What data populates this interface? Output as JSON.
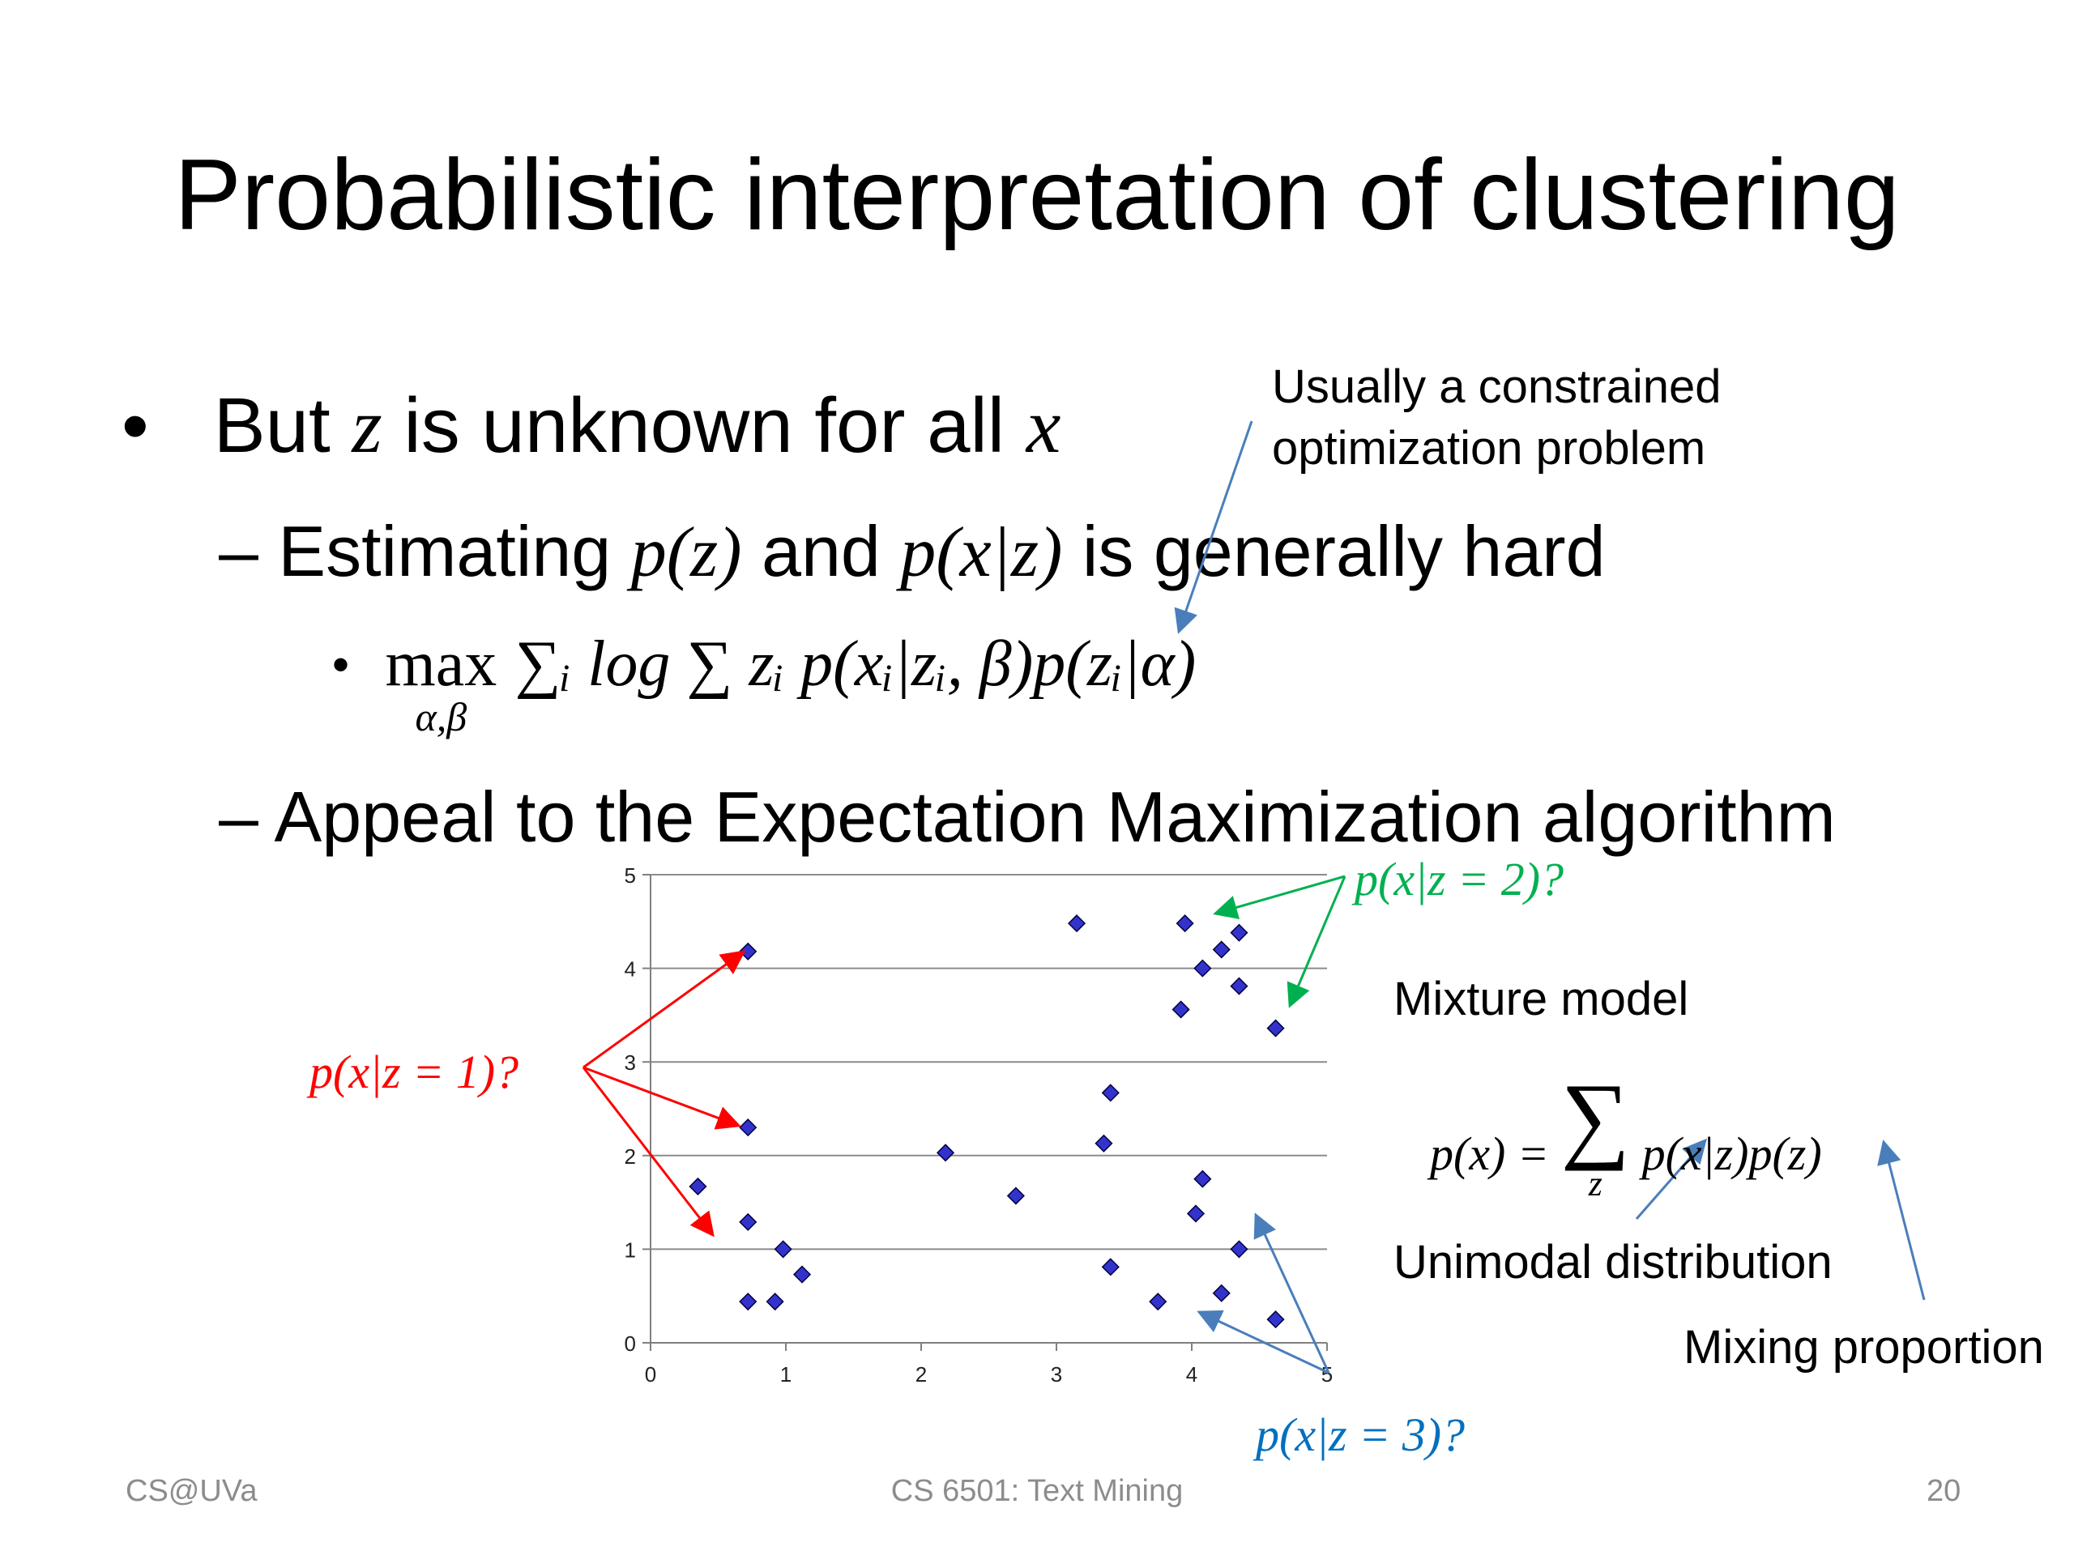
{
  "slide": {
    "title": "Probabilistic interpretation of clustering",
    "bullet1": {
      "prefix": "But",
      "var1": "z",
      "mid": "is unknown for all",
      "var2": "x"
    },
    "sub1": {
      "prefix": "Estimating",
      "m1": "p(z)",
      "and": "and",
      "m2": "p(x|z)",
      "suffix": "is generally hard"
    },
    "formula": {
      "max": "max",
      "under": "α,β",
      "rest": "∑ᵢ log ∑ zᵢ p(xᵢ|zᵢ, β)p(zᵢ|α)"
    },
    "sub2": "Appeal to the Expectation Maximization algorithm",
    "note_line1": "Usually a constrained",
    "note_line2": "optimization problem",
    "mixture_title": "Mixture model",
    "mixture_lhs": "p(x) =",
    "mixture_sum_sub": "z",
    "mixture_rhs": "p(x|z)p(z)",
    "unimodal": "Unimodal distribution",
    "mixing": "Mixing proportion",
    "label_z1": "p(x|z = 1)?",
    "label_z2": "p(x|z = 2)?",
    "label_z3": "p(x|z = 3)?",
    "footer_left": "CS@UVa",
    "footer_center": "CS 6501: Text Mining",
    "footer_right": "20"
  },
  "colors": {
    "z1": "#ff0000",
    "z2": "#00b050",
    "z3": "#0070c0",
    "arrow": "#4a7ebb",
    "point": "#3333cc"
  },
  "chart_data": {
    "type": "scatter",
    "title": "",
    "xlabel": "",
    "ylabel": "",
    "xlim": [
      0,
      5
    ],
    "ylim": [
      0,
      5
    ],
    "xticks": [
      "0",
      "1",
      "2",
      "3",
      "4",
      "5"
    ],
    "yticks": [
      "0",
      "1",
      "2",
      "3",
      "4",
      "5"
    ],
    "grid": "horizontal",
    "series": [
      {
        "values": [
          [
            0.35,
            1.67
          ],
          [
            0.72,
            4.18
          ],
          [
            0.72,
            2.3
          ],
          [
            0.72,
            1.29
          ],
          [
            0.72,
            0.44
          ],
          [
            0.98,
            1.0
          ],
          [
            0.92,
            0.44
          ],
          [
            1.12,
            0.73
          ],
          [
            2.18,
            2.03
          ],
          [
            2.7,
            1.57
          ],
          [
            3.15,
            4.48
          ],
          [
            3.4,
            2.67
          ],
          [
            3.35,
            2.13
          ],
          [
            3.4,
            0.81
          ],
          [
            3.75,
            0.44
          ],
          [
            3.95,
            4.48
          ],
          [
            3.92,
            3.56
          ],
          [
            4.08,
            4.0
          ],
          [
            4.22,
            4.2
          ],
          [
            4.35,
            4.38
          ],
          [
            4.35,
            3.81
          ],
          [
            4.62,
            3.36
          ],
          [
            4.08,
            1.75
          ],
          [
            4.03,
            1.38
          ],
          [
            4.35,
            1.0
          ],
          [
            4.22,
            0.53
          ],
          [
            4.62,
            0.25
          ]
        ]
      }
    ]
  }
}
